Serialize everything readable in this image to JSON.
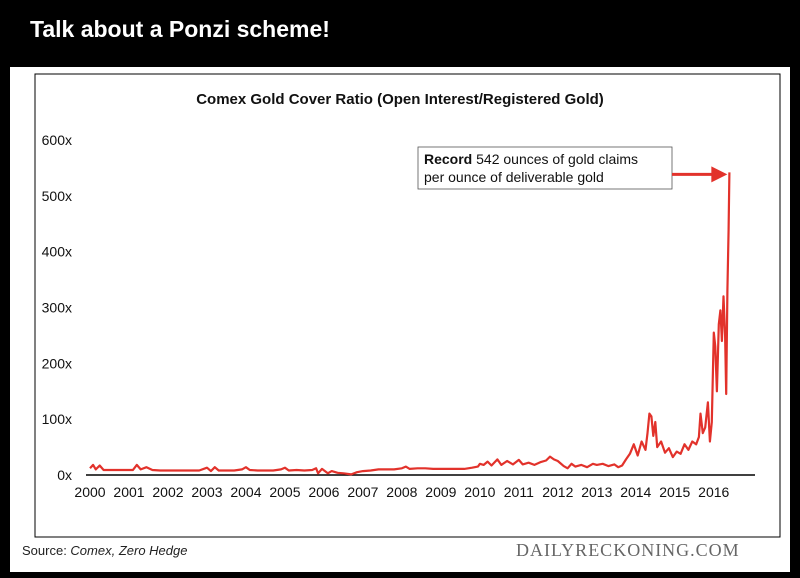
{
  "headline": "Talk about a Ponzi scheme!",
  "source": {
    "prefix": "Source: ",
    "sources": "Comex, Zero Hedge"
  },
  "watermark": "DAILYRECKONING.COM",
  "colors": {
    "line": "#e2322b",
    "axis": "#000000",
    "background": "#ffffff",
    "frame": "#000000"
  },
  "chart_data": {
    "type": "line",
    "title": "Comex Gold Cover Ratio (Open Interest/Registered Gold)",
    "xlabel": "",
    "ylabel": "",
    "xlim": [
      2000,
      2016.75
    ],
    "ylim": [
      0,
      600
    ],
    "x_ticks": [
      2000,
      2001,
      2002,
      2003,
      2004,
      2005,
      2006,
      2007,
      2008,
      2009,
      2010,
      2011,
      2012,
      2013,
      2014,
      2015,
      2016
    ],
    "y_ticks": [
      0,
      100,
      200,
      300,
      400,
      500,
      600
    ],
    "y_tick_labels": [
      "0x",
      "100x",
      "200x",
      "300x",
      "400x",
      "500x",
      "600x"
    ],
    "grid": false,
    "legend": "none",
    "series": [
      {
        "color": "#e2322b",
        "points": [
          [
            2000.0,
            12
          ],
          [
            2000.08,
            18
          ],
          [
            2000.15,
            10
          ],
          [
            2000.25,
            17
          ],
          [
            2000.35,
            9
          ],
          [
            2000.5,
            9
          ],
          [
            2000.7,
            9
          ],
          [
            2000.9,
            9
          ],
          [
            2001.0,
            9
          ],
          [
            2001.1,
            9
          ],
          [
            2001.2,
            18
          ],
          [
            2001.3,
            10
          ],
          [
            2001.45,
            14
          ],
          [
            2001.6,
            9
          ],
          [
            2001.8,
            8
          ],
          [
            2002.0,
            8
          ],
          [
            2002.2,
            8
          ],
          [
            2002.4,
            8
          ],
          [
            2002.6,
            8
          ],
          [
            2002.8,
            8
          ],
          [
            2003.0,
            13
          ],
          [
            2003.1,
            7
          ],
          [
            2003.2,
            14
          ],
          [
            2003.3,
            8
          ],
          [
            2003.5,
            8
          ],
          [
            2003.7,
            8
          ],
          [
            2003.9,
            10
          ],
          [
            2004.0,
            14
          ],
          [
            2004.1,
            9
          ],
          [
            2004.3,
            8
          ],
          [
            2004.5,
            8
          ],
          [
            2004.7,
            8
          ],
          [
            2004.9,
            10
          ],
          [
            2005.0,
            13
          ],
          [
            2005.1,
            8
          ],
          [
            2005.3,
            9
          ],
          [
            2005.5,
            8
          ],
          [
            2005.7,
            9
          ],
          [
            2005.8,
            12
          ],
          [
            2005.85,
            3
          ],
          [
            2005.95,
            11
          ],
          [
            2006.1,
            3
          ],
          [
            2006.2,
            7
          ],
          [
            2006.35,
            4
          ],
          [
            2006.5,
            3
          ],
          [
            2006.7,
            1
          ],
          [
            2006.85,
            5
          ],
          [
            2007.0,
            7
          ],
          [
            2007.2,
            8
          ],
          [
            2007.4,
            10
          ],
          [
            2007.6,
            10
          ],
          [
            2007.8,
            10
          ],
          [
            2008.0,
            12
          ],
          [
            2008.1,
            15
          ],
          [
            2008.2,
            11
          ],
          [
            2008.4,
            12
          ],
          [
            2008.6,
            12
          ],
          [
            2008.8,
            11
          ],
          [
            2009.0,
            11
          ],
          [
            2009.2,
            11
          ],
          [
            2009.4,
            11
          ],
          [
            2009.6,
            11
          ],
          [
            2009.8,
            13
          ],
          [
            2009.95,
            15
          ],
          [
            2010.0,
            20
          ],
          [
            2010.1,
            18
          ],
          [
            2010.2,
            24
          ],
          [
            2010.3,
            17
          ],
          [
            2010.45,
            28
          ],
          [
            2010.55,
            18
          ],
          [
            2010.7,
            25
          ],
          [
            2010.85,
            19
          ],
          [
            2011.0,
            27
          ],
          [
            2011.1,
            19
          ],
          [
            2011.25,
            22
          ],
          [
            2011.4,
            18
          ],
          [
            2011.55,
            23
          ],
          [
            2011.7,
            26
          ],
          [
            2011.8,
            33
          ],
          [
            2011.9,
            28
          ],
          [
            2012.0,
            25
          ],
          [
            2012.15,
            16
          ],
          [
            2012.25,
            12
          ],
          [
            2012.35,
            20
          ],
          [
            2012.45,
            15
          ],
          [
            2012.6,
            18
          ],
          [
            2012.75,
            14
          ],
          [
            2012.9,
            20
          ],
          [
            2013.0,
            18
          ],
          [
            2013.15,
            20
          ],
          [
            2013.3,
            16
          ],
          [
            2013.45,
            19
          ],
          [
            2013.55,
            14
          ],
          [
            2013.65,
            17
          ],
          [
            2013.75,
            28
          ],
          [
            2013.85,
            38
          ],
          [
            2013.95,
            55
          ],
          [
            2014.05,
            35
          ],
          [
            2014.15,
            60
          ],
          [
            2014.25,
            45
          ],
          [
            2014.3,
            75
          ],
          [
            2014.35,
            110
          ],
          [
            2014.4,
            105
          ],
          [
            2014.45,
            70
          ],
          [
            2014.5,
            95
          ],
          [
            2014.55,
            50
          ],
          [
            2014.65,
            60
          ],
          [
            2014.75,
            40
          ],
          [
            2014.85,
            48
          ],
          [
            2014.95,
            32
          ],
          [
            2015.05,
            42
          ],
          [
            2015.15,
            38
          ],
          [
            2015.25,
            55
          ],
          [
            2015.35,
            45
          ],
          [
            2015.45,
            60
          ],
          [
            2015.55,
            55
          ],
          [
            2015.62,
            68
          ],
          [
            2015.66,
            110
          ],
          [
            2015.72,
            75
          ],
          [
            2015.78,
            85
          ],
          [
            2015.85,
            130
          ],
          [
            2015.9,
            60
          ],
          [
            2015.95,
            95
          ],
          [
            2016.0,
            255
          ],
          [
            2016.04,
            230
          ],
          [
            2016.08,
            150
          ],
          [
            2016.13,
            270
          ],
          [
            2016.17,
            295
          ],
          [
            2016.21,
            240
          ],
          [
            2016.25,
            320
          ],
          [
            2016.29,
            250
          ],
          [
            2016.32,
            145
          ],
          [
            2016.35,
            330
          ],
          [
            2016.38,
            440
          ],
          [
            2016.4,
            542
          ]
        ]
      }
    ],
    "annotation": {
      "bold": "Record",
      "line1": " 542 ounces of gold claims",
      "line2": "per ounce of deliverable gold",
      "target": [
        2016.4,
        542
      ]
    }
  }
}
